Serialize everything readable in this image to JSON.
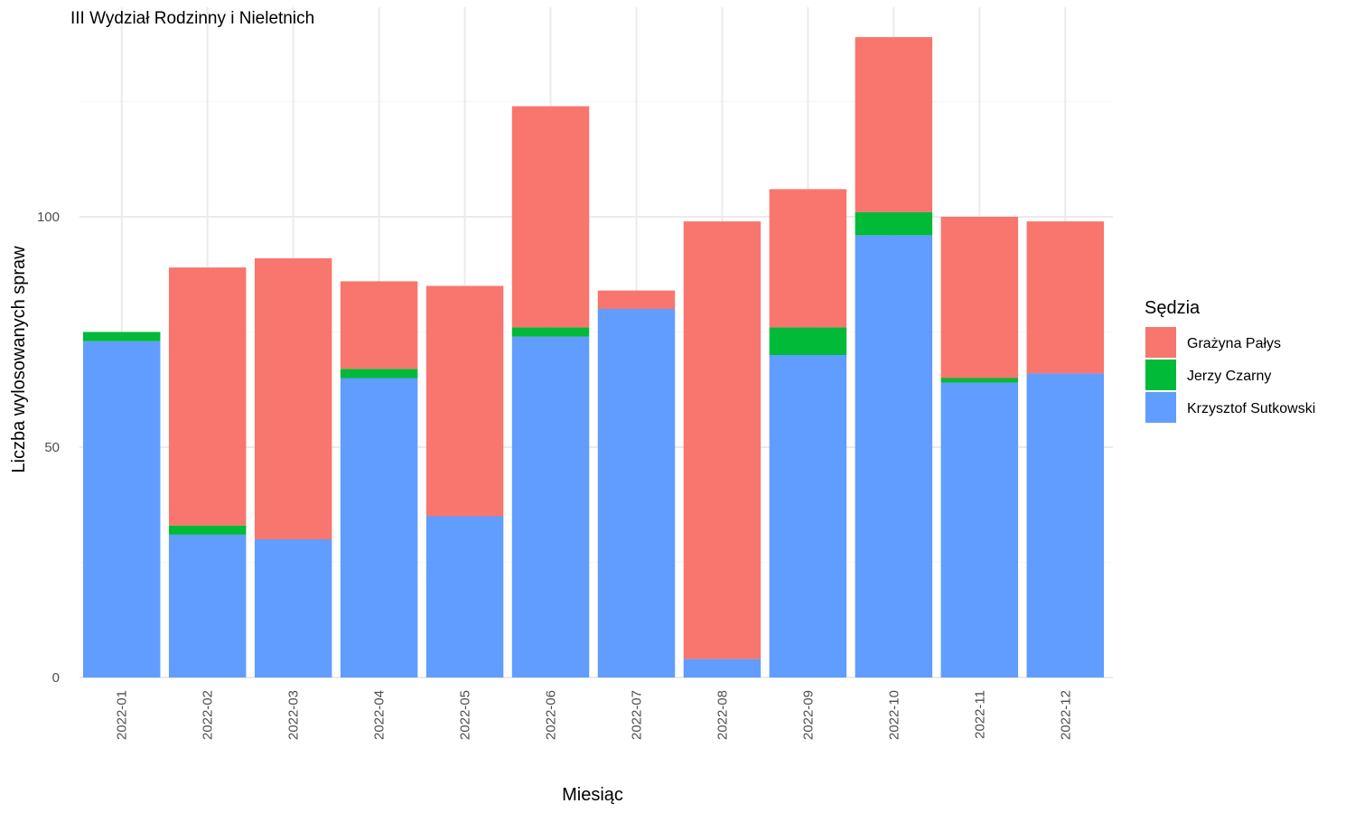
{
  "chart_data": {
    "type": "bar",
    "stacked": true,
    "title": "III Wydział Rodzinny i Nieletnich",
    "xlabel": "Miesiąc",
    "ylabel": "Liczba wylosowanych spraw",
    "ylim": [
      0,
      145
    ],
    "yticks": [
      0,
      50,
      100
    ],
    "grid": true,
    "legend": {
      "title": "Sędzia",
      "position": "right"
    },
    "categories": [
      "2022-01",
      "2022-02",
      "2022-03",
      "2022-04",
      "2022-05",
      "2022-06",
      "2022-07",
      "2022-08",
      "2022-09",
      "2022-10",
      "2022-11",
      "2022-12"
    ],
    "series": [
      {
        "name": "Krzysztof Sutkowski",
        "color": "#619cff",
        "values": [
          73,
          31,
          30,
          65,
          35,
          74,
          80,
          4,
          70,
          96,
          64,
          66
        ]
      },
      {
        "name": "Jerzy Czarny",
        "color": "#00ba38",
        "values": [
          2,
          2,
          0,
          2,
          0,
          2,
          0,
          0,
          6,
          5,
          1,
          0
        ]
      },
      {
        "name": "Grażyna Pałys",
        "color": "#f8766d",
        "values": [
          0,
          56,
          61,
          19,
          50,
          48,
          4,
          95,
          30,
          38,
          35,
          33
        ]
      }
    ],
    "legend_order": [
      "Grażyna Pałys",
      "Jerzy Czarny",
      "Krzysztof Sutkowski"
    ]
  }
}
